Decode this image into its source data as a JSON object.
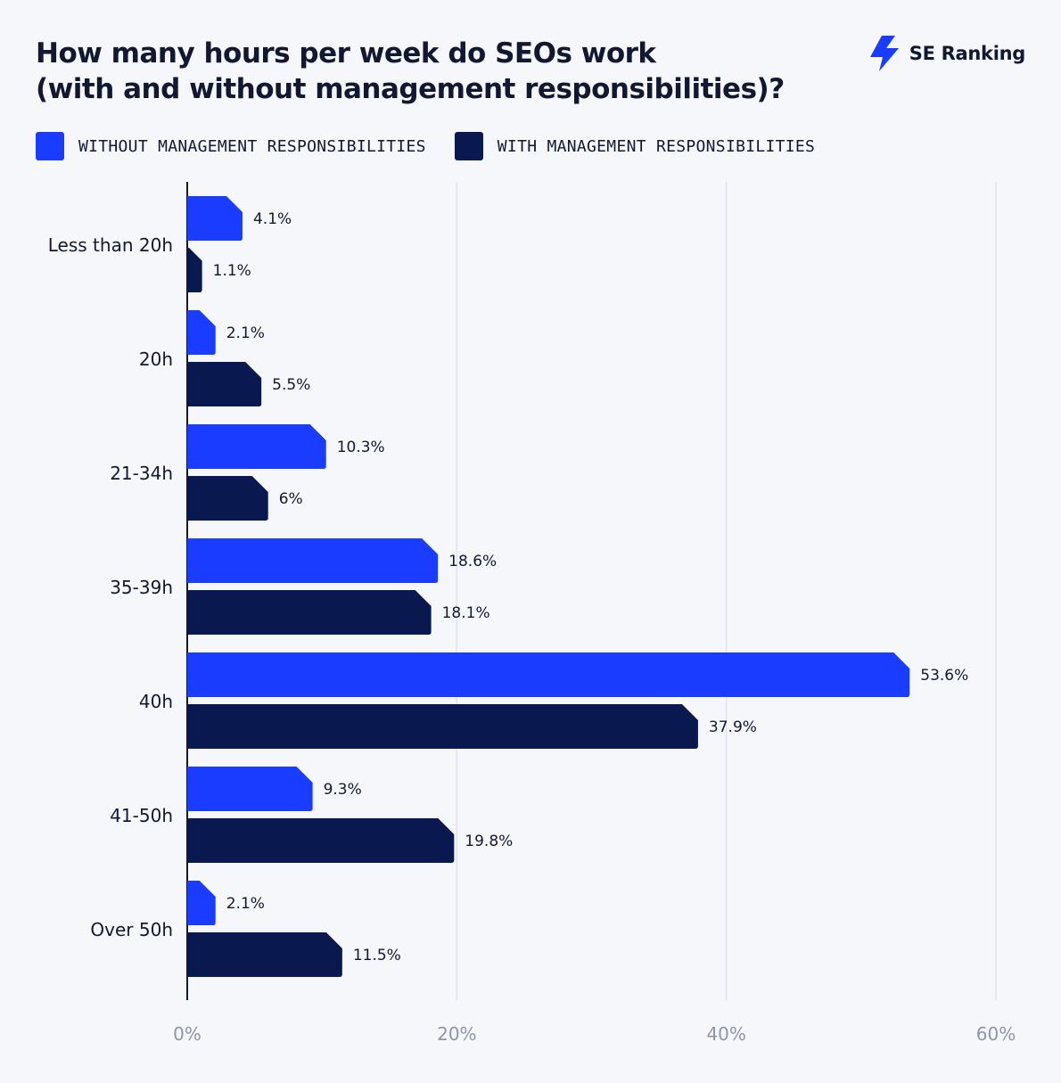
{
  "title_line1": "How many hours per week do SEOs work",
  "title_line2": "(with and without management responsibilities)?",
  "brand": {
    "name": "SE Ranking",
    "icon": "lightning-icon",
    "color": "#1a3cff"
  },
  "colors": {
    "without": "#1a3cff",
    "with": "#0a1850",
    "grid": "#dfe3ee",
    "axis": "#121832",
    "tick": "#8f95a8"
  },
  "chart_data": {
    "type": "bar",
    "orientation": "horizontal",
    "categories": [
      "Less than 20h",
      "20h",
      "21-34h",
      "35-39h",
      "40h",
      "41-50h",
      "Over 50h"
    ],
    "series": [
      {
        "name": "WITHOUT MANAGEMENT RESPONSIBILITIES",
        "values": [
          4.1,
          2.1,
          10.3,
          18.6,
          53.6,
          9.3,
          2.1
        ],
        "labels": [
          "4.1%",
          "2.1%",
          "10.3%",
          "18.6%",
          "53.6%",
          "9.3%",
          "2.1%"
        ]
      },
      {
        "name": "WITH MANAGEMENT RESPONSIBILITIES",
        "values": [
          1.1,
          5.5,
          6,
          18.1,
          37.9,
          19.8,
          11.5
        ],
        "labels": [
          "1.1%",
          "5.5%",
          "6%",
          "18.1%",
          "37.9%",
          "19.8%",
          "11.5%"
        ]
      }
    ],
    "xlim": [
      0,
      60
    ],
    "xticks": [
      "0%",
      "20%",
      "40%",
      "60%"
    ],
    "grid": true,
    "legend_position": "top-left"
  }
}
